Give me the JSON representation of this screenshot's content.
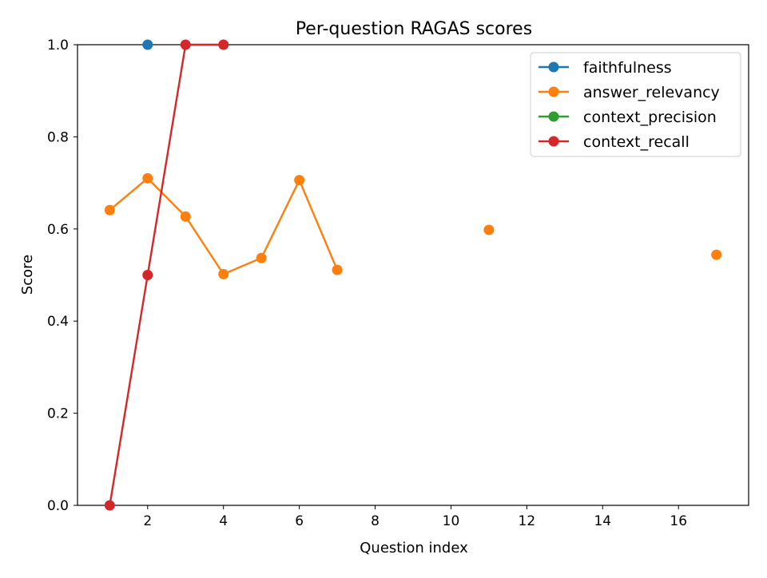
{
  "chart_data": {
    "type": "line",
    "title": "Per-question RAGAS scores",
    "xlabel": "Question index",
    "ylabel": "Score",
    "xlim": [
      0.15,
      17.85
    ],
    "ylim": [
      0,
      1
    ],
    "xticks": [
      2,
      4,
      6,
      8,
      10,
      12,
      14,
      16
    ],
    "yticks": [
      0.0,
      0.2,
      0.4,
      0.6,
      0.8,
      1.0
    ],
    "xtick_labels": [
      "2",
      "4",
      "6",
      "8",
      "10",
      "12",
      "14",
      "16"
    ],
    "ytick_labels": [
      "0.0",
      "0.2",
      "0.4",
      "0.6",
      "0.8",
      "1.0"
    ],
    "grid": false,
    "legend_position": "top-right",
    "series": [
      {
        "name": "faithfulness",
        "color": "#1f77b4",
        "x": [
          1,
          2,
          3,
          4,
          5,
          6,
          7,
          8,
          9,
          10,
          11,
          12,
          13,
          14,
          15,
          16,
          17
        ],
        "y": [
          null,
          1.0,
          null,
          null,
          null,
          null,
          null,
          null,
          null,
          null,
          null,
          null,
          null,
          null,
          null,
          null,
          null
        ]
      },
      {
        "name": "answer_relevancy",
        "color": "#ff7f0e",
        "x": [
          1,
          2,
          3,
          4,
          5,
          6,
          7,
          8,
          9,
          10,
          11,
          12,
          13,
          14,
          15,
          16,
          17
        ],
        "y": [
          0.641,
          0.71,
          0.627,
          0.502,
          0.537,
          0.706,
          0.511,
          null,
          null,
          null,
          0.598,
          null,
          null,
          null,
          null,
          null,
          0.544
        ]
      },
      {
        "name": "context_precision",
        "color": "#2ca02c",
        "x": [
          1,
          2,
          3,
          4,
          5,
          6,
          7,
          8,
          9,
          10,
          11,
          12,
          13,
          14,
          15,
          16,
          17
        ],
        "y": [
          null,
          null,
          null,
          null,
          null,
          null,
          null,
          null,
          null,
          null,
          null,
          null,
          null,
          null,
          null,
          null,
          null
        ]
      },
      {
        "name": "context_recall",
        "color": "#d62728",
        "x": [
          1,
          2,
          3,
          4,
          5,
          6,
          7,
          8,
          9,
          10,
          11,
          12,
          13,
          14,
          15,
          16,
          17
        ],
        "y": [
          0.0,
          0.5,
          1.0,
          1.0,
          null,
          null,
          null,
          null,
          null,
          null,
          null,
          null,
          null,
          null,
          null,
          null,
          null
        ]
      }
    ]
  }
}
